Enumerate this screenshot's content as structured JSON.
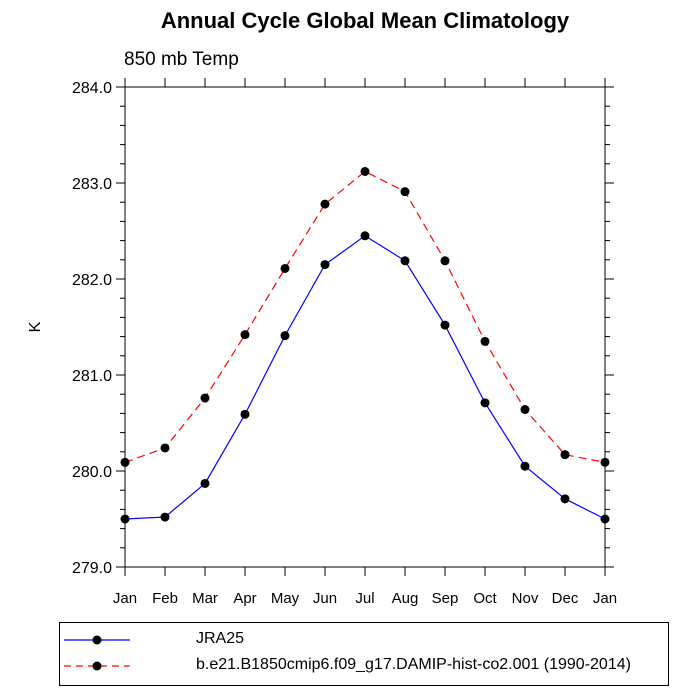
{
  "title": "Annual Cycle Global Mean Climatology",
  "subtitle": "850 mb Temp",
  "chart_data": {
    "type": "line",
    "title": "Annual Cycle Global Mean Climatology",
    "subtitle": "850 mb Temp",
    "xlabel": "",
    "ylabel": "K",
    "categories": [
      "Jan",
      "Feb",
      "Mar",
      "Apr",
      "May",
      "Jun",
      "Jul",
      "Aug",
      "Sep",
      "Oct",
      "Nov",
      "Dec",
      "Jan"
    ],
    "ylim": [
      279.0,
      284.0
    ],
    "yticks": [
      279.0,
      280.0,
      281.0,
      282.0,
      283.0,
      284.0
    ],
    "ytick_labels": [
      "279.0",
      "280.0",
      "281.0",
      "282.0",
      "283.0",
      "284.0"
    ],
    "grid": false,
    "legend_position": "bottom",
    "series": [
      {
        "name": "JRA25",
        "color": "#0000ff",
        "line_style": "solid",
        "marker": "filled-circle",
        "values": [
          279.5,
          279.52,
          279.87,
          280.59,
          281.41,
          282.15,
          282.45,
          282.19,
          281.52,
          280.71,
          280.05,
          279.71,
          279.5
        ]
      },
      {
        "name": "b.e21.B1850cmip6.f09_g17.DAMIP-hist-co2.001 (1990-2014)",
        "color": "#ff0000",
        "line_style": "dashed",
        "marker": "filled-circle",
        "values": [
          280.09,
          280.24,
          280.76,
          281.42,
          282.11,
          282.78,
          283.12,
          282.91,
          282.19,
          281.35,
          280.64,
          280.17,
          280.09
        ]
      }
    ]
  }
}
